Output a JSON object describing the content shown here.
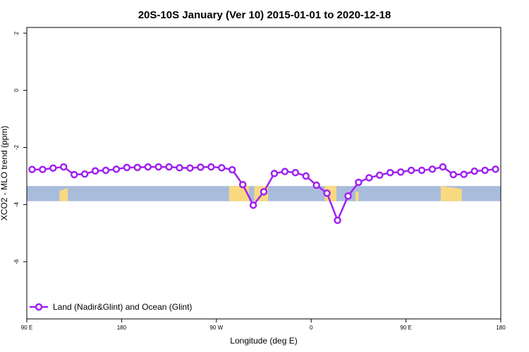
{
  "chart_data": {
    "type": "line",
    "title": "20S-10S January (Ver 10)   2015-01-01 to 2020-12-18",
    "xlabel": "Longitude (deg E)",
    "ylabel": "XCO2 - MLO trend (ppm)",
    "xlim": [
      90,
      540
    ],
    "ylim": [
      -8,
      2.2
    ],
    "x_ticks": [
      {
        "value": 90,
        "label": "90 E"
      },
      {
        "value": 180,
        "label": "180"
      },
      {
        "value": 270,
        "label": "90 W"
      },
      {
        "value": 360,
        "label": "0"
      },
      {
        "value": 450,
        "label": "90 E"
      },
      {
        "value": 540,
        "label": "180"
      }
    ],
    "y_ticks": [
      {
        "value": 2,
        "label": "2"
      },
      {
        "value": 0,
        "label": "0"
      },
      {
        "value": -2,
        "label": "-2"
      },
      {
        "value": -4,
        "label": "-4"
      },
      {
        "value": -6,
        "label": "-6"
      }
    ],
    "grid": false,
    "legend_position": "bottom-left",
    "colors": {
      "series": "#a020f0",
      "ocean": "#a8bcdc",
      "land": "#f9d980"
    },
    "series": [
      {
        "name": "Land (Nadir&Glint) and Ocean (Glint)",
        "x": [
          95,
          105,
          115,
          125,
          135,
          145,
          155,
          165,
          175,
          185,
          195,
          205,
          215,
          225,
          235,
          245,
          255,
          265,
          275,
          285,
          295,
          305,
          315,
          325,
          335,
          345,
          355,
          365,
          375,
          385,
          395,
          405,
          415,
          425,
          435,
          445,
          455,
          465,
          475,
          485,
          495,
          505,
          515,
          525,
          535
        ],
        "y": [
          -2.77,
          -2.77,
          -2.72,
          -2.68,
          -2.95,
          -2.93,
          -2.82,
          -2.8,
          -2.76,
          -2.7,
          -2.7,
          -2.68,
          -2.68,
          -2.68,
          -2.71,
          -2.72,
          -2.69,
          -2.68,
          -2.71,
          -2.78,
          -3.3,
          -4.02,
          -3.55,
          -2.91,
          -2.84,
          -2.88,
          -3.0,
          -3.32,
          -3.6,
          -4.55,
          -3.7,
          -3.22,
          -3.06,
          -2.97,
          -2.88,
          -2.86,
          -2.8,
          -2.8,
          -2.76,
          -2.68,
          -2.95,
          -2.94,
          -2.83,
          -2.8,
          -2.76
        ]
      }
    ],
    "landmask": {
      "band_y": [
        -3.35,
        -3.88
      ],
      "land_segments": [
        {
          "x": [
            121,
            129
          ],
          "top": [
            -3.52,
            -3.42
          ]
        },
        {
          "x": [
            282,
            301
          ],
          "top": [
            -3.35,
            -3.35
          ]
        },
        {
          "x": [
            306,
            319
          ],
          "top": [
            -3.35,
            -3.35
          ]
        },
        {
          "x": [
            373,
            384
          ],
          "top": [
            -3.35,
            -3.35
          ]
        },
        {
          "x": [
            402,
            405
          ],
          "top": [
            -3.55,
            -3.55
          ]
        },
        {
          "x": [
            483,
            503
          ],
          "top": [
            -3.35,
            -3.45
          ]
        }
      ]
    }
  }
}
